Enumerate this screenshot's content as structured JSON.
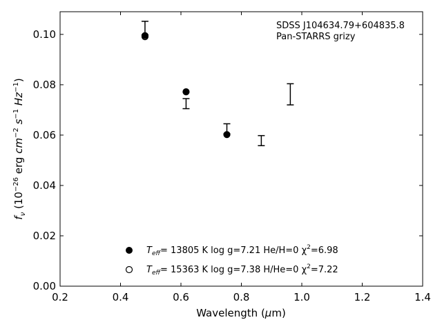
{
  "chart_data": {
    "type": "scatter",
    "title": "",
    "xlabel": "Wavelength (μm)",
    "ylabel": "f_ν (10^-26 erg cm^-2 s^-1 Hz^-1)",
    "xlim": [
      0.2,
      1.4
    ],
    "ylim": [
      0.0,
      0.109
    ],
    "xticks": [
      "0.2",
      "0.4",
      "0.6",
      "0.8",
      "1.0",
      "1.2",
      "1.4"
    ],
    "yticks": [
      "0.00",
      "0.02",
      "0.04",
      "0.06",
      "0.08",
      "0.10"
    ],
    "grid": false,
    "annotation": {
      "line1": "SDSS J104634.79+604835.8",
      "line2": "Pan-STARRS grizy"
    },
    "observed": {
      "x": [
        0.481,
        0.617,
        0.752,
        0.866,
        0.962
      ],
      "y": [
        0.1025,
        0.0725,
        0.0625,
        0.0578,
        0.0762
      ],
      "yerr": [
        0.0027,
        0.002,
        0.002,
        0.002,
        0.0042
      ]
    },
    "series": [
      {
        "name": "T_eff= 13805 K  log g=7.21  He/H=0  χ²=6.98",
        "marker": "filled-circle",
        "x": [
          0.481,
          0.617,
          0.752
        ],
        "y": [
          0.0995,
          0.0772,
          0.0602
        ]
      },
      {
        "name": "T_eff= 15363 K  log g=7.38  H/He=0  χ²=7.22",
        "marker": "open-circle",
        "x": [
          0.481
        ],
        "y": [
          0.0991
        ]
      }
    ],
    "legend": {
      "placement": "bottom-center",
      "entries": [
        {
          "teff_label": "T",
          "teff_sub": "eff",
          "text": "= 13805 K  log g=7.21  He/H=0  χ",
          "chi_sup": "2",
          "chi_val": "=6.98"
        },
        {
          "teff_label": "T",
          "teff_sub": "eff",
          "text": "= 15363 K  log g=7.38  H/He=0  χ",
          "chi_sup": "2",
          "chi_val": "=7.22"
        }
      ]
    },
    "colors": {
      "marker": "#000000",
      "background": "#ffffff"
    }
  }
}
